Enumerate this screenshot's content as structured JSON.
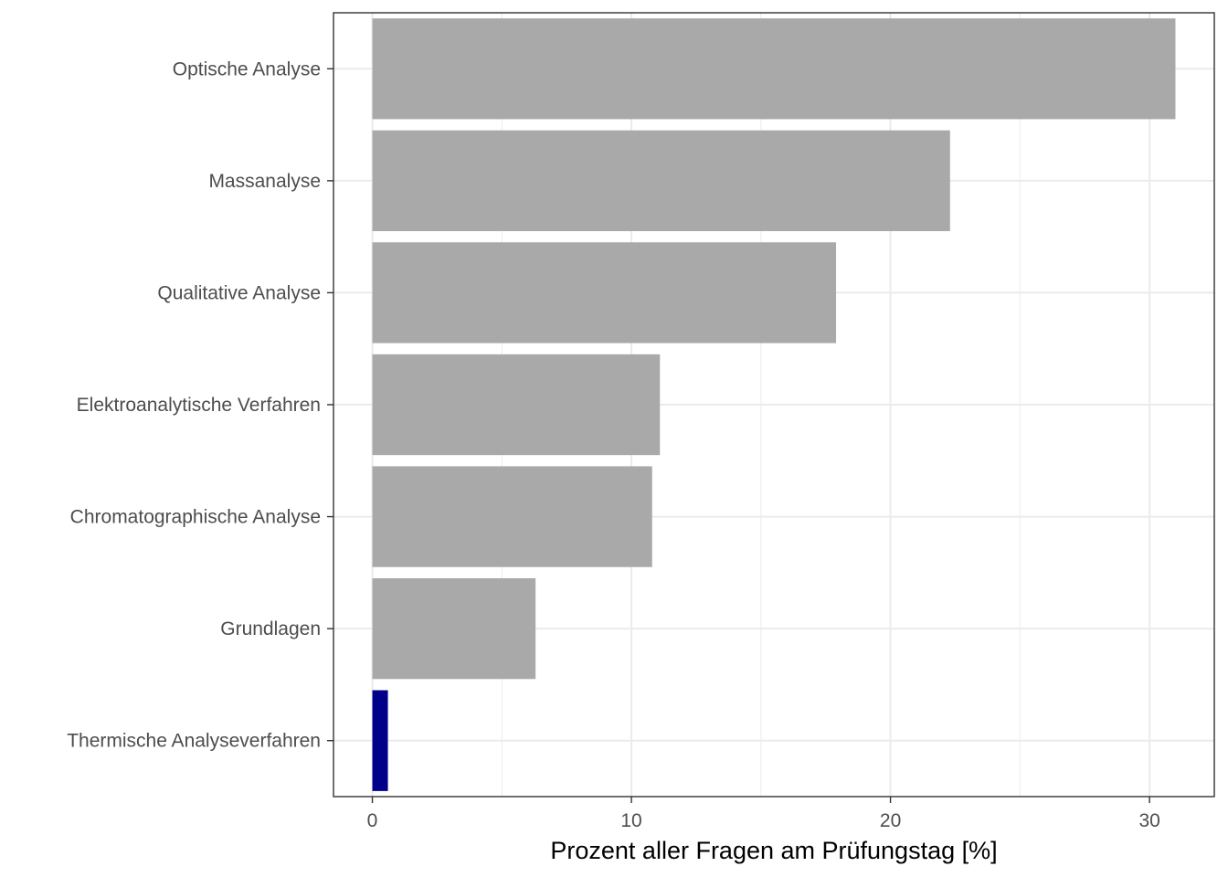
{
  "chart_data": {
    "type": "bar",
    "orientation": "horizontal",
    "categories": [
      "Optische Analyse",
      "Massanalyse",
      "Qualitative Analyse",
      "Elektroanalytische Verfahren",
      "Chromatographische Analyse",
      "Grundlagen",
      "Thermische Analyseverfahren"
    ],
    "values": [
      31.0,
      22.3,
      17.9,
      11.1,
      10.8,
      6.3,
      0.6
    ],
    "bar_colors": [
      "#a9a9a9",
      "#a9a9a9",
      "#a9a9a9",
      "#a9a9a9",
      "#a9a9a9",
      "#a9a9a9",
      "#00008b"
    ],
    "xlabel": "Prozent aller Fragen am Prüfungstag [%]",
    "ylabel": "",
    "xlim": [
      -1.5,
      32.5
    ],
    "xticks": [
      0,
      10,
      20,
      30
    ],
    "xminor": [
      5,
      15,
      25
    ],
    "grid": true,
    "legend": "none"
  },
  "colors": {
    "grid": "#ebebeb",
    "panel_border": "#333333",
    "highlight": "#00008b",
    "default_bar": "#a9a9a9"
  }
}
